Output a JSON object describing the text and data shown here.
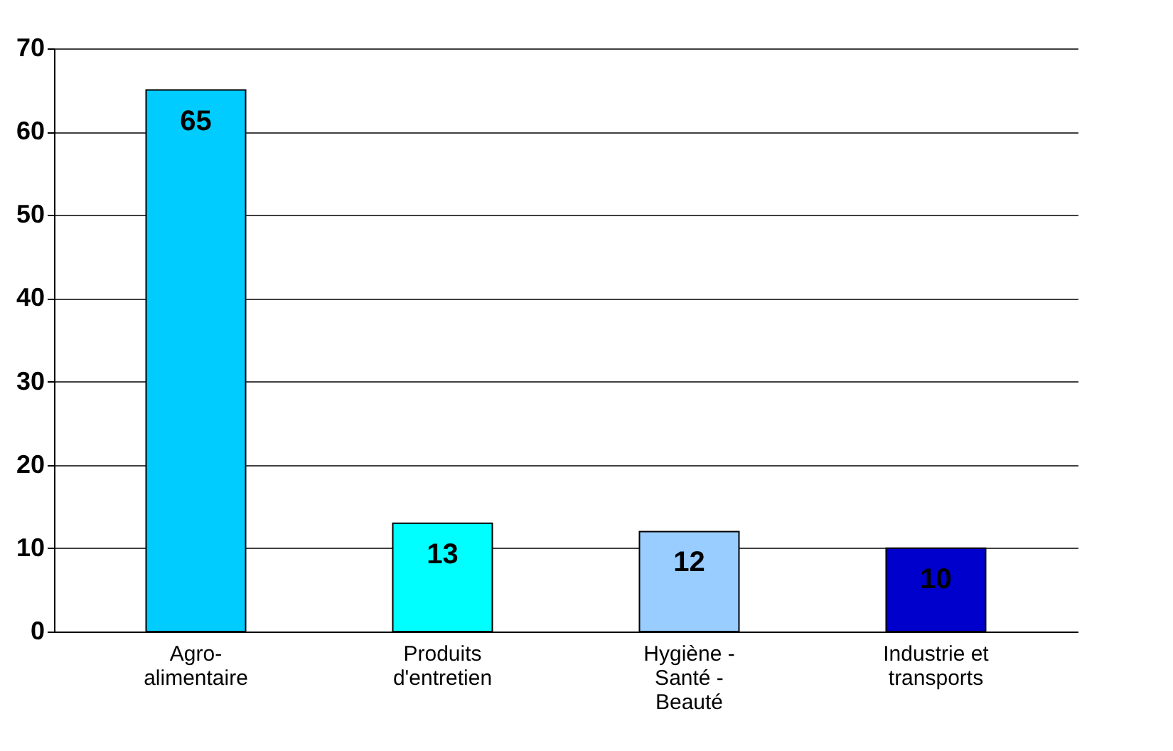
{
  "chart_data": {
    "type": "bar",
    "categories": [
      "Agro-alimentaire",
      "Produits d'entretien",
      "Hygiène - Santé - Beauté",
      "Industrie et transports"
    ],
    "values": [
      65,
      13,
      12,
      10
    ],
    "colors": [
      "#00ccff",
      "#00ffff",
      "#99ccff",
      "#0000cc"
    ],
    "ylim": [
      0,
      70
    ],
    "yticks": [
      0,
      10,
      20,
      30,
      40,
      50,
      60,
      70
    ],
    "grid": "y",
    "data_labels": true,
    "legend": false
  }
}
